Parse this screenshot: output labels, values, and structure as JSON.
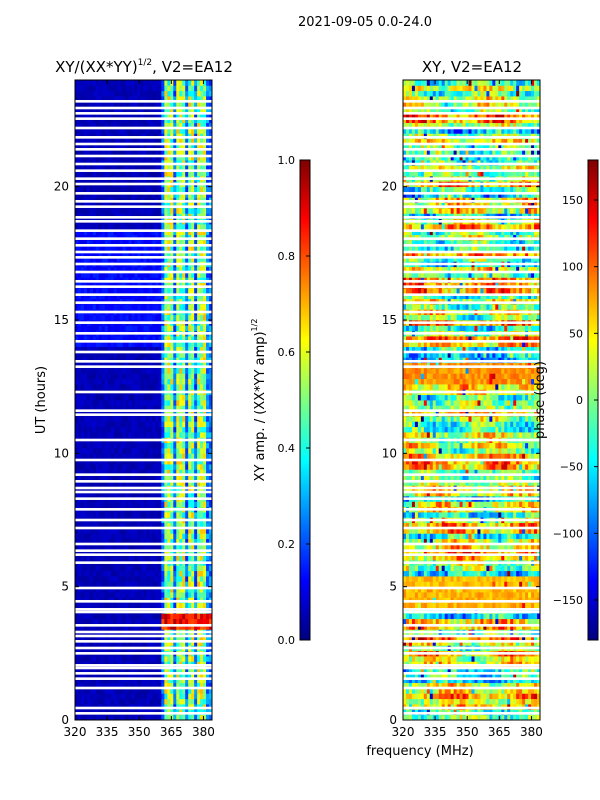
{
  "suptitle": "2021-09-05 0.0-24.0",
  "colors": {
    "jet": [
      "#00007f",
      "#0000ff",
      "#007fff",
      "#00ffff",
      "#7fff7f",
      "#ffff00",
      "#ff7f00",
      "#ff0000",
      "#7f0000"
    ],
    "gap": "#ffffff",
    "frame": "#000000"
  },
  "chart_data": [
    {
      "type": "heatmap",
      "title_main": "XY/(XX*YY)",
      "title_exp": "1/2",
      "title_suffix": ", V2=EA12",
      "xlabel": "",
      "ylabel": "UT (hours)",
      "xlim": [
        320,
        384
      ],
      "ylim": [
        0,
        24
      ],
      "xticks": [
        320,
        335,
        350,
        365,
        380
      ],
      "xtick_labels": [
        "320",
        "335",
        "350",
        "365",
        "380"
      ],
      "yticks": [
        0,
        5,
        10,
        15,
        20
      ],
      "ytick_labels": [
        "0",
        "5",
        "10",
        "15",
        "20"
      ],
      "colorbar": {
        "label_main": "XY amp. / (XX*YY amp)",
        "label_exp": "1/2",
        "range": [
          0.0,
          1.0
        ],
        "ticks": [
          0.0,
          0.2,
          0.4,
          0.6,
          0.8,
          1.0
        ],
        "tick_labels": [
          "0.0",
          "0.2",
          "0.4",
          "0.6",
          "0.8",
          "1.0"
        ]
      },
      "value_description": "low amplitude (~0.05) below 361 MHz; 0.3-0.7 in channel bands 361-384 MHz; up to 0.95 near 3.5-4.1 h"
    },
    {
      "type": "heatmap",
      "title_main": "XY, V2=EA12",
      "xlabel": "frequency (MHz)",
      "ylabel": "",
      "xlim": [
        320,
        384
      ],
      "ylim": [
        0,
        24
      ],
      "xticks": [
        320,
        335,
        350,
        365,
        380
      ],
      "xtick_labels": [
        "320",
        "335",
        "350",
        "365",
        "380"
      ],
      "yticks": [
        0,
        5,
        10,
        15,
        20
      ],
      "ytick_labels": [
        "0",
        "5",
        "10",
        "15",
        "20"
      ],
      "colorbar": {
        "label": "phase (deg)",
        "range": [
          -180,
          180
        ],
        "ticks": [
          -150,
          -100,
          -50,
          0,
          50,
          100,
          150
        ],
        "tick_labels": [
          "−150",
          "−100",
          "−50",
          "0",
          "50",
          "100",
          "150"
        ]
      },
      "value_description": "phase varies widely across the full range (-180 to 180 deg), mostly 0-100 deg"
    }
  ],
  "data_gaps_hours": [
    0.25,
    0.45,
    1.2,
    1.55,
    1.75,
    1.95,
    2.05,
    2.5,
    2.7,
    2.95,
    3.15,
    3.3,
    3.55,
    4.05,
    4.15,
    4.45,
    4.95,
    5.9,
    6.2,
    6.35,
    6.6,
    7.2,
    7.5,
    7.9,
    8.3,
    8.55,
    8.7,
    8.95,
    9.2,
    9.75,
    10.5,
    11.45,
    11.6,
    12.3,
    13.25,
    13.45,
    13.8,
    14.2,
    14.5,
    14.9,
    15.3,
    15.65,
    15.95,
    16.25,
    16.45,
    16.8,
    17.1,
    17.35,
    17.55,
    17.8,
    18.05,
    18.35,
    18.7,
    18.85,
    19.25,
    19.45,
    19.75,
    20.1,
    20.3,
    20.6,
    20.85,
    21.15,
    21.4,
    21.6,
    21.85,
    22.2,
    22.55,
    22.75,
    22.95,
    23.2
  ]
}
